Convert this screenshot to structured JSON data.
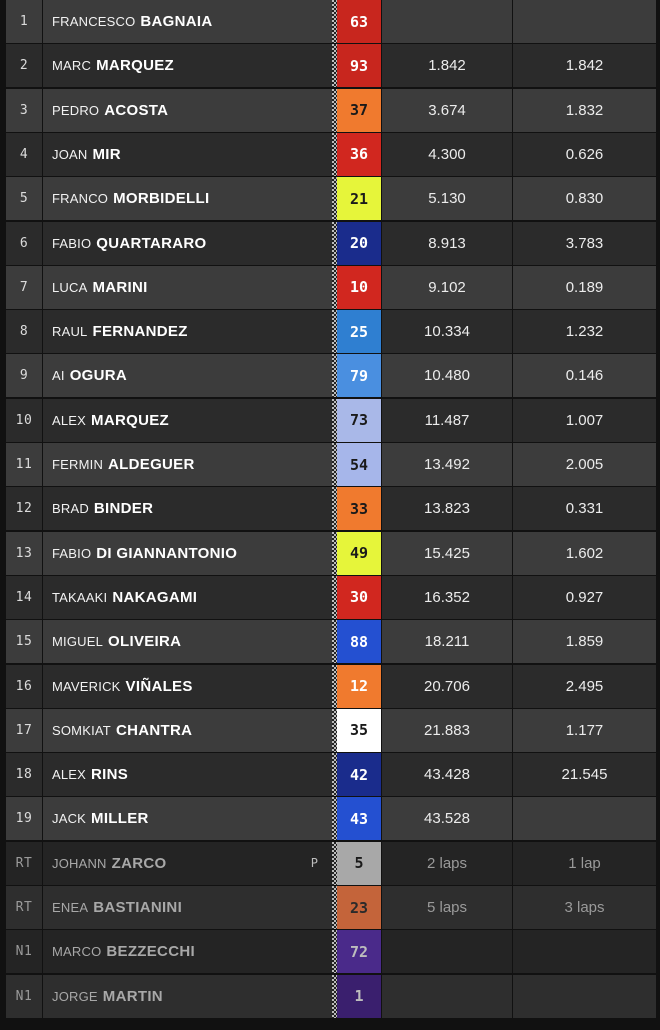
{
  "results": [
    {
      "pos": "1",
      "first": "FRANCESCO",
      "last": "BAGNAIA",
      "number": "63",
      "num_bg": "#c8261e",
      "num_fg": "#ffffff",
      "gap": "",
      "interval": "",
      "penalty": ""
    },
    {
      "pos": "2",
      "first": "MARC",
      "last": "MARQUEZ",
      "number": "93",
      "num_bg": "#c8261e",
      "num_fg": "#ffffff",
      "gap": "1.842",
      "interval": "1.842",
      "penalty": ""
    },
    {
      "pos": "3",
      "first": "PEDRO",
      "last": "ACOSTA",
      "number": "37",
      "num_bg": "#f07a2e",
      "num_fg": "#1a1a1a",
      "gap": "3.674",
      "interval": "1.832",
      "penalty": ""
    },
    {
      "pos": "4",
      "first": "JOAN",
      "last": "MIR",
      "number": "36",
      "num_bg": "#d1271f",
      "num_fg": "#ffffff",
      "gap": "4.300",
      "interval": "0.626",
      "penalty": ""
    },
    {
      "pos": "5",
      "first": "FRANCO",
      "last": "MORBIDELLI",
      "number": "21",
      "num_bg": "#e6f53a",
      "num_fg": "#1a1a1a",
      "gap": "5.130",
      "interval": "0.830",
      "penalty": ""
    },
    {
      "pos": "6",
      "first": "FABIO",
      "last": "QUARTARARO",
      "number": "20",
      "num_bg": "#1a2c8c",
      "num_fg": "#ffffff",
      "gap": "8.913",
      "interval": "3.783",
      "penalty": ""
    },
    {
      "pos": "7",
      "first": "LUCA",
      "last": "MARINI",
      "number": "10",
      "num_bg": "#d1271f",
      "num_fg": "#ffffff",
      "gap": "9.102",
      "interval": "0.189",
      "penalty": ""
    },
    {
      "pos": "8",
      "first": "RAUL",
      "last": "FERNANDEZ",
      "number": "25",
      "num_bg": "#2f7fd1",
      "num_fg": "#ffffff",
      "gap": "10.334",
      "interval": "1.232",
      "penalty": ""
    },
    {
      "pos": "9",
      "first": "AI",
      "last": "OGURA",
      "number": "79",
      "num_bg": "#4a8fe0",
      "num_fg": "#ffffff",
      "gap": "10.480",
      "interval": "0.146",
      "penalty": ""
    },
    {
      "pos": "10",
      "first": "ALEX",
      "last": "MARQUEZ",
      "number": "73",
      "num_bg": "#a9b8e8",
      "num_fg": "#1a1a1a",
      "gap": "11.487",
      "interval": "1.007",
      "penalty": ""
    },
    {
      "pos": "11",
      "first": "FERMIN",
      "last": "ALDEGUER",
      "number": "54",
      "num_bg": "#a6b6ea",
      "num_fg": "#1a1a1a",
      "gap": "13.492",
      "interval": "2.005",
      "penalty": ""
    },
    {
      "pos": "12",
      "first": "BRAD",
      "last": "BINDER",
      "number": "33",
      "num_bg": "#f07a2e",
      "num_fg": "#1a1a1a",
      "gap": "13.823",
      "interval": "0.331",
      "penalty": ""
    },
    {
      "pos": "13",
      "first": "FABIO",
      "last": "DI GIANNANTONIO",
      "number": "49",
      "num_bg": "#e6f53a",
      "num_fg": "#1a1a1a",
      "gap": "15.425",
      "interval": "1.602",
      "penalty": ""
    },
    {
      "pos": "14",
      "first": "TAKAAKI",
      "last": "NAKAGAMI",
      "number": "30",
      "num_bg": "#d1271f",
      "num_fg": "#ffffff",
      "gap": "16.352",
      "interval": "0.927",
      "penalty": ""
    },
    {
      "pos": "15",
      "first": "MIGUEL",
      "last": "OLIVEIRA",
      "number": "88",
      "num_bg": "#2450d1",
      "num_fg": "#ffffff",
      "gap": "18.211",
      "interval": "1.859",
      "penalty": ""
    },
    {
      "pos": "16",
      "first": "MAVERICK",
      "last": "VIÑALES",
      "number": "12",
      "num_bg": "#f07a2e",
      "num_fg": "#ffffff",
      "gap": "20.706",
      "interval": "2.495",
      "penalty": ""
    },
    {
      "pos": "17",
      "first": "SOMKIAT",
      "last": "CHANTRA",
      "number": "35",
      "num_bg": "#ffffff",
      "num_fg": "#1a1a1a",
      "gap": "21.883",
      "interval": "1.177",
      "penalty": ""
    },
    {
      "pos": "18",
      "first": "ALEX",
      "last": "RINS",
      "number": "42",
      "num_bg": "#1a2c8c",
      "num_fg": "#ffffff",
      "gap": "43.428",
      "interval": "21.545",
      "penalty": ""
    },
    {
      "pos": "19",
      "first": "JACK",
      "last": "MILLER",
      "number": "43",
      "num_bg": "#2450d1",
      "num_fg": "#ffffff",
      "gap": "43.528",
      "interval": "",
      "penalty": ""
    },
    {
      "pos": "RT",
      "first": "JOHANN",
      "last": "ZARCO",
      "number": "5",
      "num_bg": "#a8a8a8",
      "num_fg": "#1a1a1a",
      "gap": "2 laps",
      "interval": "1 lap",
      "penalty": "P"
    },
    {
      "pos": "RT",
      "first": "ENEA",
      "last": "BASTIANINI",
      "number": "23",
      "num_bg": "#c4643a",
      "num_fg": "#2a2a2a",
      "gap": "5 laps",
      "interval": "3 laps",
      "penalty": ""
    },
    {
      "pos": "N1",
      "first": "MARCO",
      "last": "BEZZECCHI",
      "number": "72",
      "num_bg": "#4a2a8a",
      "num_fg": "#bdbdbd",
      "gap": "",
      "interval": "",
      "penalty": ""
    },
    {
      "pos": "N1",
      "first": "JORGE",
      "last": "MARTIN",
      "number": "1",
      "num_bg": "#3a1f6e",
      "num_fg": "#bdbdbd",
      "gap": "",
      "interval": "",
      "penalty": ""
    }
  ]
}
